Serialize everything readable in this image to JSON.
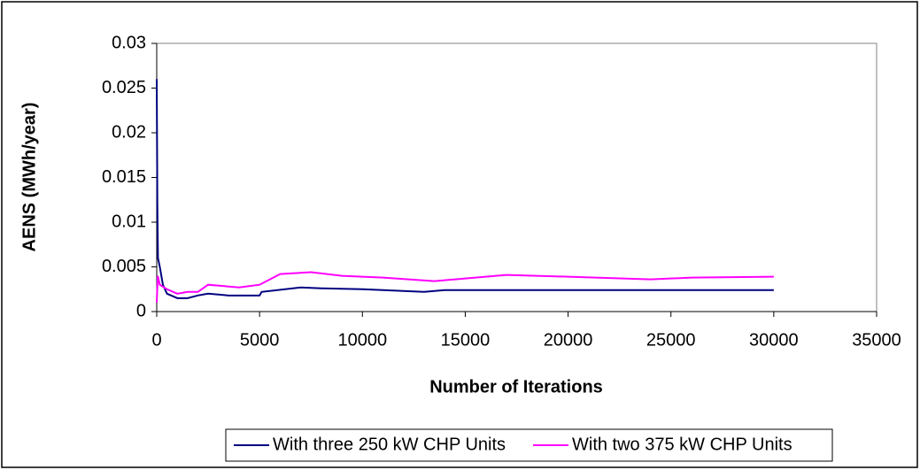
{
  "chart_data": {
    "type": "line",
    "xlabel": "Number of Iterations",
    "ylabel": "AENS (MWh/year)",
    "xlim": [
      0,
      35000
    ],
    "xticks": [
      0,
      5000,
      10000,
      15000,
      20000,
      25000,
      30000,
      35000
    ],
    "ylim": [
      0,
      0.03
    ],
    "yticks": [
      0,
      0.005,
      0.01,
      0.015,
      0.02,
      0.025,
      0.03
    ],
    "legend": "bottom",
    "series": [
      {
        "name": "With three 250 kW CHP Units",
        "color": "#000080",
        "x": [
          0,
          30,
          60,
          150,
          300,
          500,
          1000,
          1500,
          2000,
          2500,
          3500,
          5000,
          5100,
          7000,
          8000,
          10000,
          13000,
          14000,
          20000,
          30000
        ],
        "values": [
          0.026,
          0.012,
          0.006,
          0.005,
          0.003,
          0.002,
          0.0015,
          0.0015,
          0.0018,
          0.002,
          0.0018,
          0.0018,
          0.0022,
          0.0027,
          0.0026,
          0.0025,
          0.0022,
          0.0024,
          0.0024,
          0.0024
        ]
      },
      {
        "name": "With two 375 kW CHP Units",
        "color": "#ff00ff",
        "x": [
          0,
          50,
          150,
          500,
          1000,
          1500,
          2000,
          2500,
          4000,
          5000,
          6000,
          7500,
          9000,
          11000,
          13500,
          15000,
          17000,
          20000,
          24000,
          26000,
          30000
        ],
        "values": [
          0.001,
          0.004,
          0.003,
          0.0025,
          0.002,
          0.0022,
          0.0022,
          0.003,
          0.0027,
          0.003,
          0.0042,
          0.0044,
          0.004,
          0.0038,
          0.0034,
          0.0037,
          0.0041,
          0.0039,
          0.0036,
          0.0038,
          0.0039
        ]
      }
    ]
  }
}
